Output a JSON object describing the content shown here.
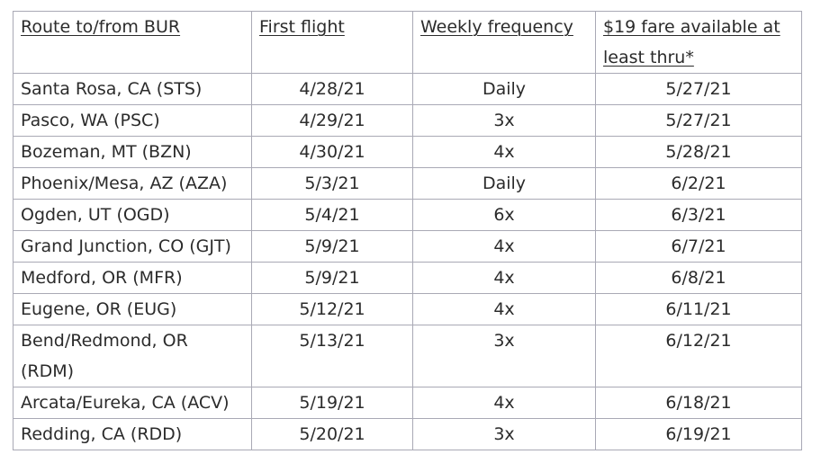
{
  "table": {
    "headers": [
      "Route to/from BUR",
      "First flight",
      "Weekly frequency",
      "$19 fare available at least thru*"
    ],
    "rows": [
      {
        "route": "Santa Rosa, CA (STS)",
        "first_flight": "4/28/21",
        "frequency": "Daily",
        "fare_thru": "5/27/21"
      },
      {
        "route": "Pasco, WA (PSC)",
        "first_flight": "4/29/21",
        "frequency": "3x",
        "fare_thru": "5/27/21"
      },
      {
        "route": "Bozeman, MT (BZN)",
        "first_flight": "4/30/21",
        "frequency": "4x",
        "fare_thru": "5/28/21"
      },
      {
        "route": "Phoenix/Mesa, AZ (AZA)",
        "first_flight": "5/3/21",
        "frequency": "Daily",
        "fare_thru": "6/2/21"
      },
      {
        "route": "Ogden, UT (OGD)",
        "first_flight": "5/4/21",
        "frequency": "6x",
        "fare_thru": "6/3/21"
      },
      {
        "route": "Grand Junction, CO (GJT)",
        "first_flight": "5/9/21",
        "frequency": "4x",
        "fare_thru": "6/7/21"
      },
      {
        "route": "Medford, OR (MFR)",
        "first_flight": "5/9/21",
        "frequency": "4x",
        "fare_thru": "6/8/21"
      },
      {
        "route": "Eugene, OR (EUG)",
        "first_flight": "5/12/21",
        "frequency": "4x",
        "fare_thru": "6/11/21"
      },
      {
        "route": "Bend/Redmond, OR (RDM)",
        "first_flight": "5/13/21",
        "frequency": "3x",
        "fare_thru": "6/12/21"
      },
      {
        "route": "Arcata/Eureka, CA (ACV)",
        "first_flight": "5/19/21",
        "frequency": "4x",
        "fare_thru": "6/18/21"
      },
      {
        "route": "Redding, CA (RDD)",
        "first_flight": "5/20/21",
        "frequency": "3x",
        "fare_thru": "6/19/21"
      }
    ]
  }
}
